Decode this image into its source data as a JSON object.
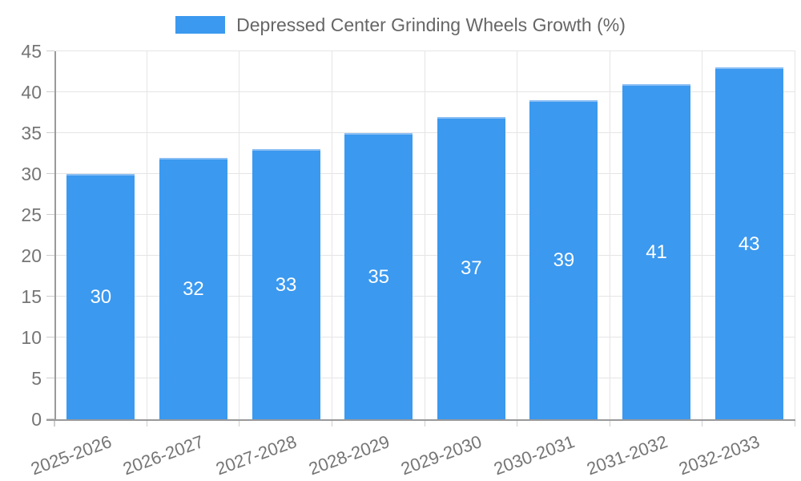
{
  "chart_data": {
    "type": "bar",
    "title": "Depressed Center Grinding Wheels Growth (%)",
    "categories": [
      "2025-2026",
      "2026-2027",
      "2027-2028",
      "2028-2029",
      "2029-2030",
      "2030-2031",
      "2031-2032",
      "2032-2033"
    ],
    "values": [
      30,
      32,
      33,
      35,
      37,
      39,
      41,
      43
    ],
    "value_labels": [
      "30",
      "32",
      "33",
      "35",
      "37",
      "39",
      "41",
      "43"
    ],
    "xlabel": "",
    "ylabel": "",
    "ylim": [
      0,
      45
    ],
    "yticks": [
      0,
      5,
      10,
      15,
      20,
      25,
      30,
      35,
      40,
      45
    ],
    "grid": true,
    "legend_position": "top"
  },
  "colors": {
    "bar": "#3b99ef",
    "bar_top_border": "#8abef4",
    "legend_text": "#666666",
    "tick_text": "#757575",
    "value_label": "#ffffff",
    "gridline": "#e5e5e5",
    "tick_mark": "#cdcdcd",
    "axis_line": "#9a9a9a",
    "background": "#ffffff"
  }
}
